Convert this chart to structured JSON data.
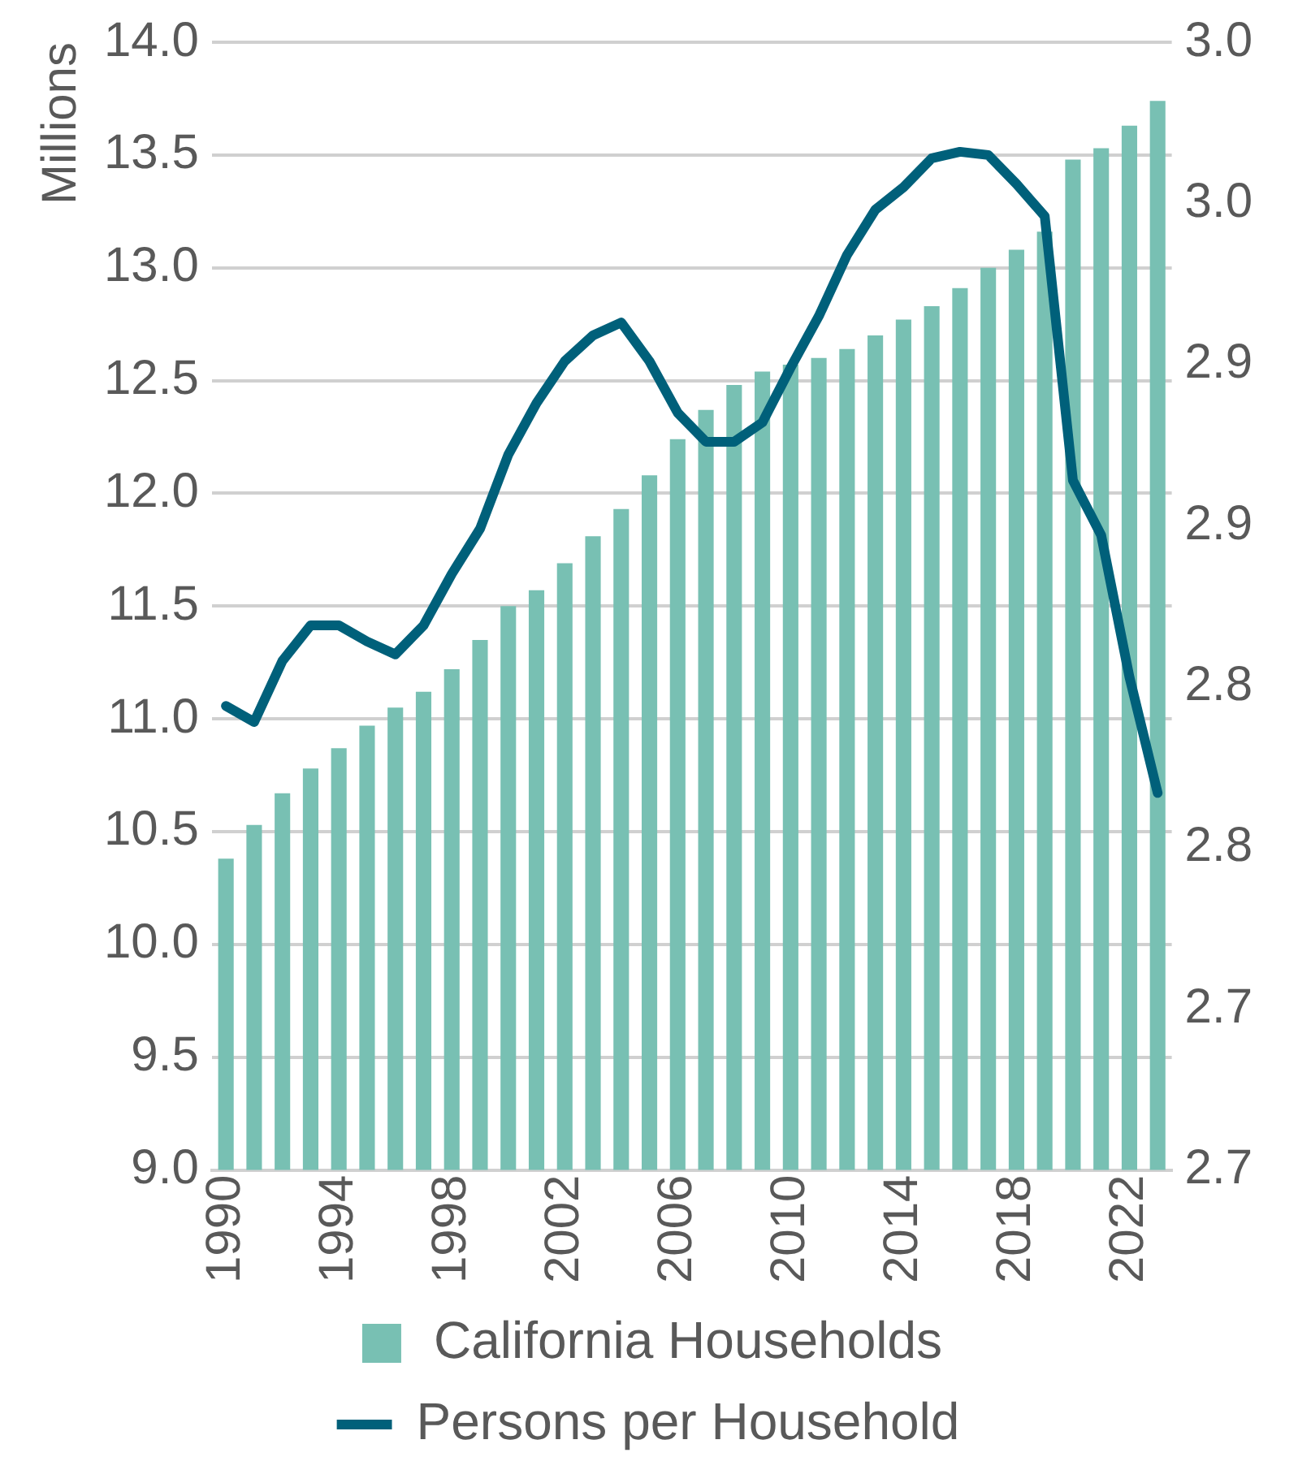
{
  "chart_data": {
    "type": "bar",
    "ylabel": "Millions",
    "categories": [
      "1990",
      null,
      null,
      null,
      "1994",
      null,
      null,
      null,
      "1998",
      null,
      null,
      null,
      "2002",
      null,
      null,
      null,
      "2006",
      null,
      null,
      null,
      "2010",
      null,
      null,
      null,
      "2014",
      null,
      null,
      null,
      "2018",
      null,
      null,
      null,
      "2022",
      null
    ],
    "series": [
      {
        "name": "California Households",
        "color": "#78c0b3",
        "values": [
          10.38,
          10.53,
          10.67,
          10.78,
          10.87,
          10.97,
          11.05,
          11.12,
          11.22,
          11.35,
          11.5,
          11.57,
          11.69,
          11.81,
          11.93,
          12.08,
          12.24,
          12.37,
          12.48,
          12.54,
          12.57,
          12.6,
          12.64,
          12.7,
          12.77,
          12.83,
          12.91,
          13.0,
          13.08,
          13.16,
          13.48,
          13.53,
          13.63,
          13.74
        ]
      },
      {
        "name": "Persons per Household",
        "type": "line",
        "axis": "y2",
        "color": "#00607a",
        "values": [
          2.794,
          2.789,
          2.808,
          2.819,
          2.819,
          2.814,
          2.81,
          2.819,
          2.835,
          2.849,
          2.872,
          2.888,
          2.901,
          2.909,
          2.913,
          2.901,
          2.885,
          2.876,
          2.876,
          2.882,
          2.899,
          2.915,
          2.934,
          2.948,
          2.955,
          2.964,
          2.966,
          2.965,
          2.956,
          2.946,
          2.864,
          2.847,
          2.803,
          2.767
        ]
      }
    ],
    "ylim": [
      9.0,
      14.0
    ],
    "yticks": [
      {
        "value": 9,
        "label": "9.0"
      },
      {
        "value": 9.5,
        "label": "9.5"
      },
      {
        "value": 10,
        "label": "10.0"
      },
      {
        "value": 10.5,
        "label": "10.5"
      },
      {
        "value": 11,
        "label": "11.0"
      },
      {
        "value": 11.5,
        "label": "11.5"
      },
      {
        "value": 12,
        "label": "12.0"
      },
      {
        "value": 12.5,
        "label": "12.5"
      },
      {
        "value": 13,
        "label": "13.0"
      },
      {
        "value": 13.5,
        "label": "13.5"
      },
      {
        "value": 14,
        "label": "14.0"
      }
    ],
    "y2lim": [
      2.65,
      3.0
    ],
    "y2ticks": [
      {
        "value": 2.65,
        "label": "2.7"
      },
      {
        "value": 2.7,
        "label": "2.7"
      },
      {
        "value": 2.75,
        "label": "2.8"
      },
      {
        "value": 2.8,
        "label": "2.8"
      },
      {
        "value": 2.85,
        "label": "2.9"
      },
      {
        "value": 2.9,
        "label": "2.9"
      },
      {
        "value": 2.95,
        "label": "3.0"
      },
      {
        "value": 3.0,
        "label": "3.0"
      }
    ],
    "grid": "y",
    "legend": "bottom",
    "marker": "none",
    "line_style": "solid"
  }
}
